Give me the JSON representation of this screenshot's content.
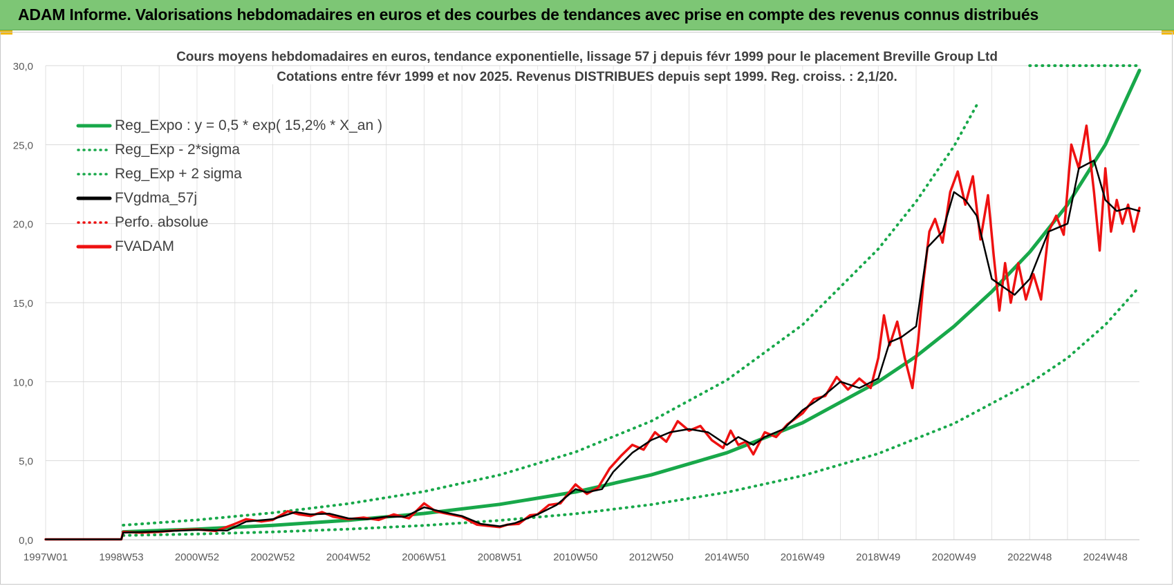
{
  "banner": {
    "title": "ADAM Informe. Valorisations hebdomadaires en euros et des courbes de tendances avec prise en compte des revenus connus distribués"
  },
  "colors": {
    "banner_bg": "#7dc675",
    "green": "#18a84a",
    "black": "#000000",
    "red": "#ee1111"
  },
  "chart_data": {
    "type": "line",
    "title_line1": "Cours moyens hebdomadaires en euros, tendance exponentielle, lissage 57 j depuis févr 1999 pour le placement Breville Group Ltd",
    "title_line2": "Cotations entre févr 1999 et nov 2025. Revenus DISTRIBUES depuis sept 1999. Reg. croiss. : 2,1/20.",
    "xlabel": "",
    "ylabel": "",
    "x_range": [
      1997.0,
      2025.9
    ],
    "ylim": [
      0,
      30
    ],
    "y_ticks": [
      0,
      5,
      10,
      15,
      20,
      25,
      30
    ],
    "y_tick_labels": [
      "0,0",
      "5,0",
      "10,0",
      "15,0",
      "20,0",
      "25,0",
      "30,0"
    ],
    "x_ticks": [
      {
        "label": "1997W01",
        "x": 1997.0
      },
      {
        "label": "1998W53",
        "x": 1999.0
      },
      {
        "label": "2000W52",
        "x": 2001.0
      },
      {
        "label": "2002W52",
        "x": 2003.0
      },
      {
        "label": "2004W52",
        "x": 2005.0
      },
      {
        "label": "2006W51",
        "x": 2007.0
      },
      {
        "label": "2008W51",
        "x": 2009.0
      },
      {
        "label": "2010W50",
        "x": 2011.0
      },
      {
        "label": "2012W50",
        "x": 2013.0
      },
      {
        "label": "2014W50",
        "x": 2015.0
      },
      {
        "label": "2016W49",
        "x": 2017.0
      },
      {
        "label": "2018W49",
        "x": 2019.0
      },
      {
        "label": "2020W49",
        "x": 2021.0
      },
      {
        "label": "2022W48",
        "x": 2023.0
      },
      {
        "label": "2024W48",
        "x": 2025.0
      }
    ],
    "grid": true,
    "legend_position": "top-left",
    "series": [
      {
        "name": "Reg_Expo : y = 0,5 * exp( 15,2% *  X_an )",
        "style": "solid",
        "color": "#18a84a",
        "width": 5,
        "x": [
          1999.05,
          2001,
          2003,
          2005,
          2007,
          2009,
          2011,
          2013,
          2015,
          2017,
          2019,
          2020,
          2021,
          2022,
          2023,
          2024,
          2025,
          2025.9
        ],
        "y": [
          0.5,
          0.67,
          0.91,
          1.23,
          1.66,
          2.24,
          3.02,
          4.1,
          5.5,
          7.4,
          10.0,
          11.6,
          13.5,
          15.7,
          18.2,
          21.2,
          25.0,
          29.7
        ]
      },
      {
        "name": "Reg_Exp - 2*sigma",
        "style": "dotted",
        "color": "#18a84a",
        "width": 4,
        "x": [
          1999.05,
          2001,
          2003,
          2005,
          2007,
          2009,
          2011,
          2013,
          2015,
          2017,
          2019,
          2021,
          2023,
          2024,
          2025,
          2025.9
        ],
        "y": [
          0.27,
          0.36,
          0.49,
          0.67,
          0.9,
          1.22,
          1.64,
          2.22,
          3.0,
          4.05,
          5.45,
          7.35,
          9.9,
          11.5,
          13.6,
          16.0
        ]
      },
      {
        "name": "Reg_Exp + 2 sigma",
        "style": "dotted",
        "color": "#18a84a",
        "width": 4,
        "x": [
          1999.05,
          2001,
          2003,
          2005,
          2007,
          2009,
          2011,
          2013,
          2015,
          2017,
          2019,
          2020,
          2021,
          2021.6,
          2022,
          2023,
          2024,
          2025,
          2025.9
        ],
        "y": [
          0.92,
          1.25,
          1.7,
          2.28,
          3.05,
          4.1,
          5.55,
          7.5,
          10.1,
          13.6,
          18.4,
          21.4,
          24.9,
          27.5,
          null,
          30.0,
          30.0,
          30.0,
          30.0
        ]
      },
      {
        "name": "FVgdma_57j",
        "style": "solid",
        "color": "#000000",
        "width": 2.5,
        "x": [
          1997.0,
          1999.0,
          1999.05,
          2000,
          2001,
          2001.8,
          2002.3,
          2003,
          2003.6,
          2004,
          2004.5,
          2005,
          2005.5,
          2006,
          2006.5,
          2007,
          2007.5,
          2008,
          2008.5,
          2009,
          2009.4,
          2010,
          2010.5,
          2011,
          2011.3,
          2011.7,
          2012,
          2012.5,
          2013,
          2013.5,
          2014,
          2014.5,
          2015,
          2015.3,
          2015.7,
          2016,
          2016.5,
          2017,
          2017.5,
          2018,
          2018.5,
          2019,
          2019.3,
          2019.6,
          2020,
          2020.3,
          2020.7,
          2021,
          2021.3,
          2021.6,
          2022,
          2022.3,
          2022.6,
          2023,
          2023.5,
          2024,
          2024.3,
          2024.7,
          2025,
          2025.3,
          2025.6,
          2025.9
        ],
        "y": [
          0.02,
          0.02,
          0.45,
          0.52,
          0.62,
          0.58,
          1.15,
          1.3,
          1.75,
          1.6,
          1.65,
          1.35,
          1.3,
          1.45,
          1.45,
          2.05,
          1.75,
          1.5,
          1.0,
          0.85,
          1.05,
          1.6,
          2.2,
          3.2,
          3.0,
          3.2,
          4.3,
          5.5,
          6.3,
          6.8,
          7.0,
          6.8,
          6.0,
          6.5,
          6.0,
          6.5,
          7.0,
          8.2,
          9.0,
          10.0,
          9.6,
          10.2,
          12.5,
          12.8,
          13.5,
          18.5,
          19.5,
          22.0,
          21.5,
          20.5,
          16.5,
          16.0,
          15.5,
          16.5,
          19.5,
          20.0,
          23.5,
          24.0,
          21.5,
          20.8,
          21.0,
          20.8
        ]
      },
      {
        "name": "Perfo. absolue",
        "style": "dotted",
        "color": "#ee1111",
        "width": 2.5,
        "x": [],
        "y": []
      },
      {
        "name": "FVADAM",
        "style": "solid",
        "color": "#ee1111",
        "width": 3.5,
        "x": [
          1997.0,
          1999.0,
          1999.05,
          1999.5,
          2000,
          2000.5,
          2001,
          2001.5,
          2002,
          2002.3,
          2002.7,
          2003,
          2003.4,
          2003.7,
          2004,
          2004.3,
          2004.6,
          2005,
          2005.4,
          2005.8,
          2006.2,
          2006.6,
          2007,
          2007.3,
          2007.6,
          2008,
          2008.4,
          2008.8,
          2009,
          2009.2,
          2009.5,
          2009.8,
          2010,
          2010.3,
          2010.6,
          2011,
          2011.3,
          2011.6,
          2011.9,
          2012.2,
          2012.5,
          2012.8,
          2013.1,
          2013.4,
          2013.7,
          2014,
          2014.3,
          2014.6,
          2014.9,
          2015.1,
          2015.3,
          2015.5,
          2015.7,
          2016,
          2016.3,
          2016.6,
          2017,
          2017.3,
          2017.6,
          2017.9,
          2018.2,
          2018.5,
          2018.8,
          2019,
          2019.15,
          2019.3,
          2019.5,
          2019.7,
          2019.9,
          2020.05,
          2020.2,
          2020.35,
          2020.5,
          2020.7,
          2020.9,
          2021.1,
          2021.3,
          2021.5,
          2021.7,
          2021.9,
          2022.05,
          2022.2,
          2022.35,
          2022.5,
          2022.7,
          2022.9,
          2023.1,
          2023.3,
          2023.5,
          2023.7,
          2023.9,
          2024.1,
          2024.3,
          2024.5,
          2024.7,
          2024.85,
          2025.0,
          2025.15,
          2025.3,
          2025.45,
          2025.6,
          2025.75,
          2025.9
        ],
        "y": [
          0.02,
          0.02,
          0.5,
          0.45,
          0.5,
          0.6,
          0.65,
          0.55,
          1.0,
          1.3,
          1.15,
          1.25,
          1.8,
          1.6,
          1.5,
          1.75,
          1.45,
          1.3,
          1.4,
          1.25,
          1.6,
          1.35,
          2.3,
          1.8,
          1.65,
          1.45,
          0.95,
          0.85,
          0.8,
          0.95,
          1.0,
          1.55,
          1.6,
          2.2,
          2.3,
          3.5,
          2.9,
          3.3,
          4.5,
          5.3,
          6.0,
          5.7,
          6.8,
          6.2,
          7.5,
          6.9,
          7.2,
          6.3,
          5.8,
          6.9,
          6.0,
          6.2,
          5.4,
          6.8,
          6.5,
          7.3,
          8.0,
          8.9,
          9.1,
          10.3,
          9.5,
          10.2,
          9.6,
          11.5,
          14.2,
          12.3,
          13.8,
          11.5,
          9.6,
          12.5,
          16.5,
          19.5,
          20.3,
          18.8,
          22.0,
          23.3,
          21.2,
          23.0,
          19.0,
          21.8,
          18.0,
          14.5,
          17.5,
          15.0,
          17.5,
          15.2,
          16.8,
          15.2,
          19.5,
          20.5,
          19.3,
          25.0,
          23.5,
          26.2,
          22.0,
          18.3,
          23.5,
          19.5,
          21.5,
          20.0,
          21.2,
          19.5,
          21.0
        ]
      }
    ]
  }
}
